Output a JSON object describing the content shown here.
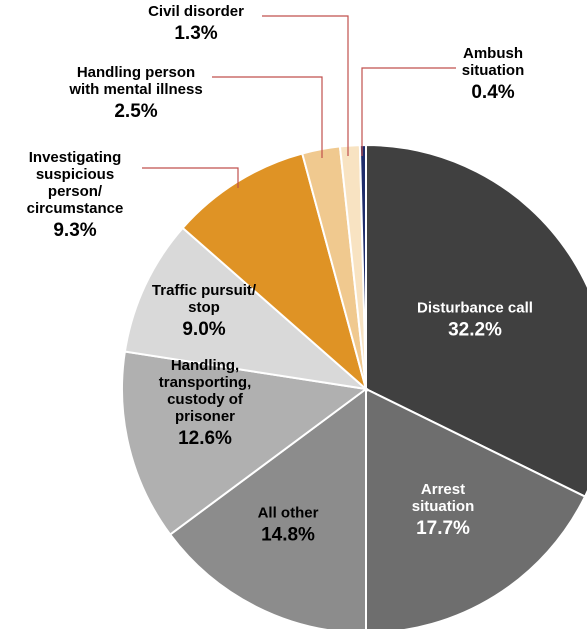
{
  "chart_data": {
    "type": "pie",
    "title": "",
    "start_angle_deg": 0,
    "direction": "clockwise",
    "leader_color": "#c0504d",
    "slices": [
      {
        "label": [
          "Disturbance call"
        ],
        "value": 32.2,
        "value_label": "32.2%",
        "color": "#404040",
        "text_color": "#ffffff"
      },
      {
        "label": [
          "Arrest",
          "situation"
        ],
        "value": 17.7,
        "value_label": "17.7%",
        "color": "#6e6e6e",
        "text_color": "#ffffff"
      },
      {
        "label": [
          "All other"
        ],
        "value": 14.8,
        "value_label": "14.8%",
        "color": "#8c8c8c",
        "text_color": "#000000"
      },
      {
        "label": [
          "Handling,",
          "transporting,",
          "custody of",
          "prisoner"
        ],
        "value": 12.6,
        "value_label": "12.6%",
        "color": "#b0b0b0",
        "text_color": "#000000"
      },
      {
        "label": [
          "Traffic pursuit/",
          "stop"
        ],
        "value": 9.0,
        "value_label": "9.0%",
        "color": "#d9d9d9",
        "text_color": "#000000"
      },
      {
        "label": [
          "Investigating",
          "suspicious",
          "person/",
          "circumstance"
        ],
        "value": 9.3,
        "value_label": "9.3%",
        "color": "#df9325",
        "text_color": "#000000"
      },
      {
        "label": [
          "Handling person",
          "with mental illness"
        ],
        "value": 2.5,
        "value_label": "2.5%",
        "color": "#f0c98f",
        "text_color": "#000000"
      },
      {
        "label": [
          "Civil disorder"
        ],
        "value": 1.3,
        "value_label": "1.3%",
        "color": "#f8e3c2",
        "text_color": "#000000"
      },
      {
        "label": [
          "Ambush",
          "situation"
        ],
        "value": 0.4,
        "value_label": "0.4%",
        "color": "#1f2d6b",
        "text_color": "#000000"
      }
    ]
  }
}
